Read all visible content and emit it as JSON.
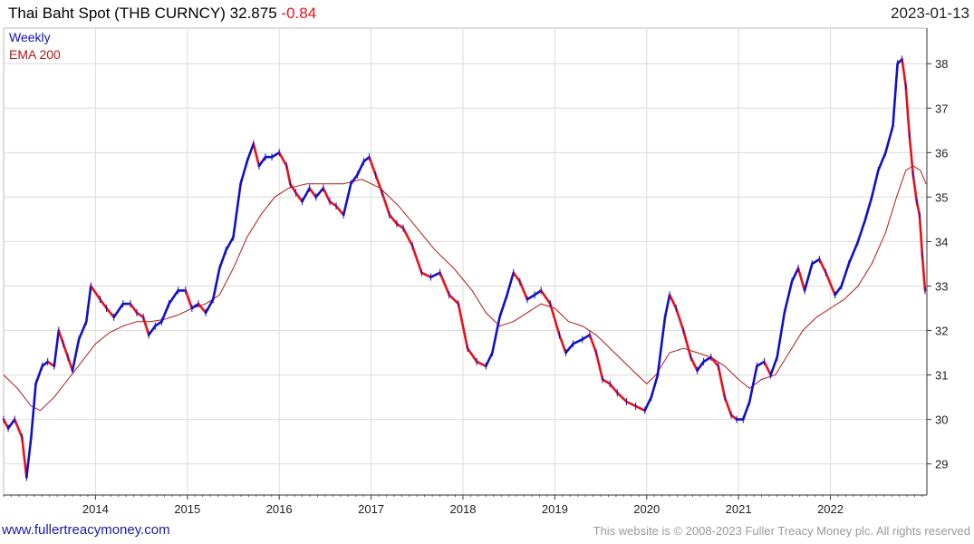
{
  "header": {
    "title": "Thai Baht Spot (THB CURNCY) 32.875",
    "change": "-0.84",
    "date": "2023-01-13"
  },
  "legend": {
    "weekly": "Weekly",
    "ema": "EMA 200"
  },
  "footer": {
    "site": "www.fullertreacymoney.com",
    "copyright": "This website is © 2008-2023 Fuller Treacy Money plc. All rights reserved"
  },
  "colors": {
    "up": "#1010c8",
    "down": "#e8101a",
    "ema": "#b01818",
    "grid": "#dcdcdc",
    "axis": "#333333"
  },
  "chart_data": {
    "type": "line",
    "title": "Thai Baht Spot (THB CURNCY) 32.875",
    "ylim": [
      28.3,
      38.8
    ],
    "xlim": [
      2013.0,
      2023.05
    ],
    "yticks": [
      29,
      30,
      31,
      32,
      33,
      34,
      35,
      36,
      37,
      38
    ],
    "xticks": [
      "2014",
      "2015",
      "2016",
      "2017",
      "2018",
      "2019",
      "2020",
      "2021",
      "2022"
    ],
    "legend": "top-left",
    "grid": true,
    "series": [
      {
        "name": "Weekly",
        "style": "price",
        "points": [
          [
            2013.0,
            30.0
          ],
          [
            2013.05,
            29.8
          ],
          [
            2013.12,
            30.0
          ],
          [
            2013.2,
            29.6
          ],
          [
            2013.25,
            28.7
          ],
          [
            2013.3,
            29.6
          ],
          [
            2013.35,
            30.8
          ],
          [
            2013.42,
            31.2
          ],
          [
            2013.48,
            31.3
          ],
          [
            2013.55,
            31.2
          ],
          [
            2013.6,
            32.0
          ],
          [
            2013.65,
            31.7
          ],
          [
            2013.7,
            31.4
          ],
          [
            2013.75,
            31.1
          ],
          [
            2013.82,
            31.8
          ],
          [
            2013.9,
            32.2
          ],
          [
            2013.95,
            33.0
          ],
          [
            2014.05,
            32.7
          ],
          [
            2014.12,
            32.5
          ],
          [
            2014.2,
            32.3
          ],
          [
            2014.3,
            32.6
          ],
          [
            2014.38,
            32.6
          ],
          [
            2014.45,
            32.4
          ],
          [
            2014.52,
            32.3
          ],
          [
            2014.58,
            31.9
          ],
          [
            2014.65,
            32.1
          ],
          [
            2014.72,
            32.2
          ],
          [
            2014.8,
            32.6
          ],
          [
            2014.9,
            32.9
          ],
          [
            2014.98,
            32.9
          ],
          [
            2015.05,
            32.5
          ],
          [
            2015.12,
            32.6
          ],
          [
            2015.2,
            32.4
          ],
          [
            2015.28,
            32.7
          ],
          [
            2015.35,
            33.4
          ],
          [
            2015.42,
            33.8
          ],
          [
            2015.5,
            34.1
          ],
          [
            2015.58,
            35.3
          ],
          [
            2015.65,
            35.8
          ],
          [
            2015.72,
            36.2
          ],
          [
            2015.78,
            35.7
          ],
          [
            2015.85,
            35.9
          ],
          [
            2015.92,
            35.9
          ],
          [
            2016.0,
            36.0
          ],
          [
            2016.08,
            35.7
          ],
          [
            2016.12,
            35.3
          ],
          [
            2016.18,
            35.1
          ],
          [
            2016.25,
            34.9
          ],
          [
            2016.33,
            35.2
          ],
          [
            2016.4,
            35.0
          ],
          [
            2016.48,
            35.2
          ],
          [
            2016.55,
            34.9
          ],
          [
            2016.62,
            34.8
          ],
          [
            2016.7,
            34.6
          ],
          [
            2016.78,
            35.3
          ],
          [
            2016.85,
            35.5
          ],
          [
            2016.92,
            35.8
          ],
          [
            2016.98,
            35.9
          ],
          [
            2017.05,
            35.5
          ],
          [
            2017.12,
            35.1
          ],
          [
            2017.2,
            34.6
          ],
          [
            2017.28,
            34.4
          ],
          [
            2017.35,
            34.3
          ],
          [
            2017.45,
            33.9
          ],
          [
            2017.55,
            33.3
          ],
          [
            2017.65,
            33.2
          ],
          [
            2017.75,
            33.3
          ],
          [
            2017.85,
            32.8
          ],
          [
            2017.95,
            32.6
          ],
          [
            2018.05,
            31.6
          ],
          [
            2018.15,
            31.3
          ],
          [
            2018.25,
            31.2
          ],
          [
            2018.32,
            31.5
          ],
          [
            2018.4,
            32.3
          ],
          [
            2018.48,
            32.8
          ],
          [
            2018.55,
            33.3
          ],
          [
            2018.62,
            33.1
          ],
          [
            2018.7,
            32.7
          ],
          [
            2018.78,
            32.8
          ],
          [
            2018.85,
            32.9
          ],
          [
            2018.95,
            32.6
          ],
          [
            2019.05,
            31.9
          ],
          [
            2019.12,
            31.5
          ],
          [
            2019.2,
            31.7
          ],
          [
            2019.3,
            31.8
          ],
          [
            2019.38,
            31.9
          ],
          [
            2019.45,
            31.5
          ],
          [
            2019.52,
            30.9
          ],
          [
            2019.6,
            30.8
          ],
          [
            2019.68,
            30.6
          ],
          [
            2019.78,
            30.4
          ],
          [
            2019.88,
            30.3
          ],
          [
            2019.98,
            30.2
          ],
          [
            2020.05,
            30.5
          ],
          [
            2020.12,
            31.0
          ],
          [
            2020.2,
            32.3
          ],
          [
            2020.25,
            32.8
          ],
          [
            2020.32,
            32.5
          ],
          [
            2020.4,
            32.0
          ],
          [
            2020.48,
            31.4
          ],
          [
            2020.55,
            31.1
          ],
          [
            2020.62,
            31.3
          ],
          [
            2020.7,
            31.4
          ],
          [
            2020.78,
            31.2
          ],
          [
            2020.85,
            30.5
          ],
          [
            2020.92,
            30.1
          ],
          [
            2020.98,
            30.0
          ],
          [
            2021.05,
            30.0
          ],
          [
            2021.12,
            30.4
          ],
          [
            2021.2,
            31.2
          ],
          [
            2021.28,
            31.3
          ],
          [
            2021.35,
            31.0
          ],
          [
            2021.42,
            31.4
          ],
          [
            2021.5,
            32.4
          ],
          [
            2021.58,
            33.1
          ],
          [
            2021.65,
            33.4
          ],
          [
            2021.72,
            32.9
          ],
          [
            2021.8,
            33.5
          ],
          [
            2021.88,
            33.6
          ],
          [
            2021.95,
            33.3
          ],
          [
            2022.05,
            32.8
          ],
          [
            2022.12,
            33.0
          ],
          [
            2022.2,
            33.5
          ],
          [
            2022.3,
            34.0
          ],
          [
            2022.38,
            34.5
          ],
          [
            2022.45,
            35.0
          ],
          [
            2022.52,
            35.6
          ],
          [
            2022.6,
            36.0
          ],
          [
            2022.68,
            36.6
          ],
          [
            2022.73,
            38.0
          ],
          [
            2022.78,
            38.1
          ],
          [
            2022.82,
            37.5
          ],
          [
            2022.86,
            36.4
          ],
          [
            2022.9,
            35.5
          ],
          [
            2022.94,
            34.9
          ],
          [
            2022.97,
            34.6
          ],
          [
            2023.0,
            33.7
          ],
          [
            2023.03,
            32.9
          ]
        ]
      },
      {
        "name": "EMA 200",
        "style": "ema",
        "points": [
          [
            2013.0,
            31.0
          ],
          [
            2013.15,
            30.7
          ],
          [
            2013.3,
            30.3
          ],
          [
            2013.4,
            30.2
          ],
          [
            2013.55,
            30.5
          ],
          [
            2013.7,
            30.9
          ],
          [
            2013.85,
            31.3
          ],
          [
            2014.0,
            31.7
          ],
          [
            2014.15,
            31.95
          ],
          [
            2014.3,
            32.1
          ],
          [
            2014.45,
            32.2
          ],
          [
            2014.6,
            32.2
          ],
          [
            2014.75,
            32.25
          ],
          [
            2014.9,
            32.35
          ],
          [
            2015.05,
            32.5
          ],
          [
            2015.2,
            32.6
          ],
          [
            2015.35,
            32.8
          ],
          [
            2015.5,
            33.4
          ],
          [
            2015.65,
            34.1
          ],
          [
            2015.8,
            34.6
          ],
          [
            2015.95,
            35.0
          ],
          [
            2016.1,
            35.2
          ],
          [
            2016.3,
            35.3
          ],
          [
            2016.5,
            35.3
          ],
          [
            2016.7,
            35.3
          ],
          [
            2016.9,
            35.4
          ],
          [
            2017.1,
            35.2
          ],
          [
            2017.3,
            34.8
          ],
          [
            2017.5,
            34.3
          ],
          [
            2017.7,
            33.8
          ],
          [
            2017.9,
            33.4
          ],
          [
            2018.1,
            32.9
          ],
          [
            2018.25,
            32.4
          ],
          [
            2018.4,
            32.1
          ],
          [
            2018.55,
            32.2
          ],
          [
            2018.7,
            32.4
          ],
          [
            2018.85,
            32.6
          ],
          [
            2019.0,
            32.5
          ],
          [
            2019.15,
            32.2
          ],
          [
            2019.3,
            32.1
          ],
          [
            2019.45,
            31.9
          ],
          [
            2019.6,
            31.6
          ],
          [
            2019.75,
            31.3
          ],
          [
            2019.9,
            31.0
          ],
          [
            2020.0,
            30.8
          ],
          [
            2020.1,
            31.0
          ],
          [
            2020.25,
            31.5
          ],
          [
            2020.4,
            31.6
          ],
          [
            2020.55,
            31.5
          ],
          [
            2020.7,
            31.4
          ],
          [
            2020.85,
            31.2
          ],
          [
            2021.0,
            30.9
          ],
          [
            2021.12,
            30.7
          ],
          [
            2021.25,
            30.9
          ],
          [
            2021.4,
            31.0
          ],
          [
            2021.55,
            31.5
          ],
          [
            2021.7,
            32.0
          ],
          [
            2021.85,
            32.3
          ],
          [
            2022.0,
            32.5
          ],
          [
            2022.15,
            32.7
          ],
          [
            2022.3,
            33.0
          ],
          [
            2022.45,
            33.5
          ],
          [
            2022.6,
            34.2
          ],
          [
            2022.72,
            35.0
          ],
          [
            2022.82,
            35.6
          ],
          [
            2022.9,
            35.7
          ],
          [
            2022.98,
            35.6
          ],
          [
            2023.04,
            35.3
          ]
        ]
      }
    ]
  }
}
